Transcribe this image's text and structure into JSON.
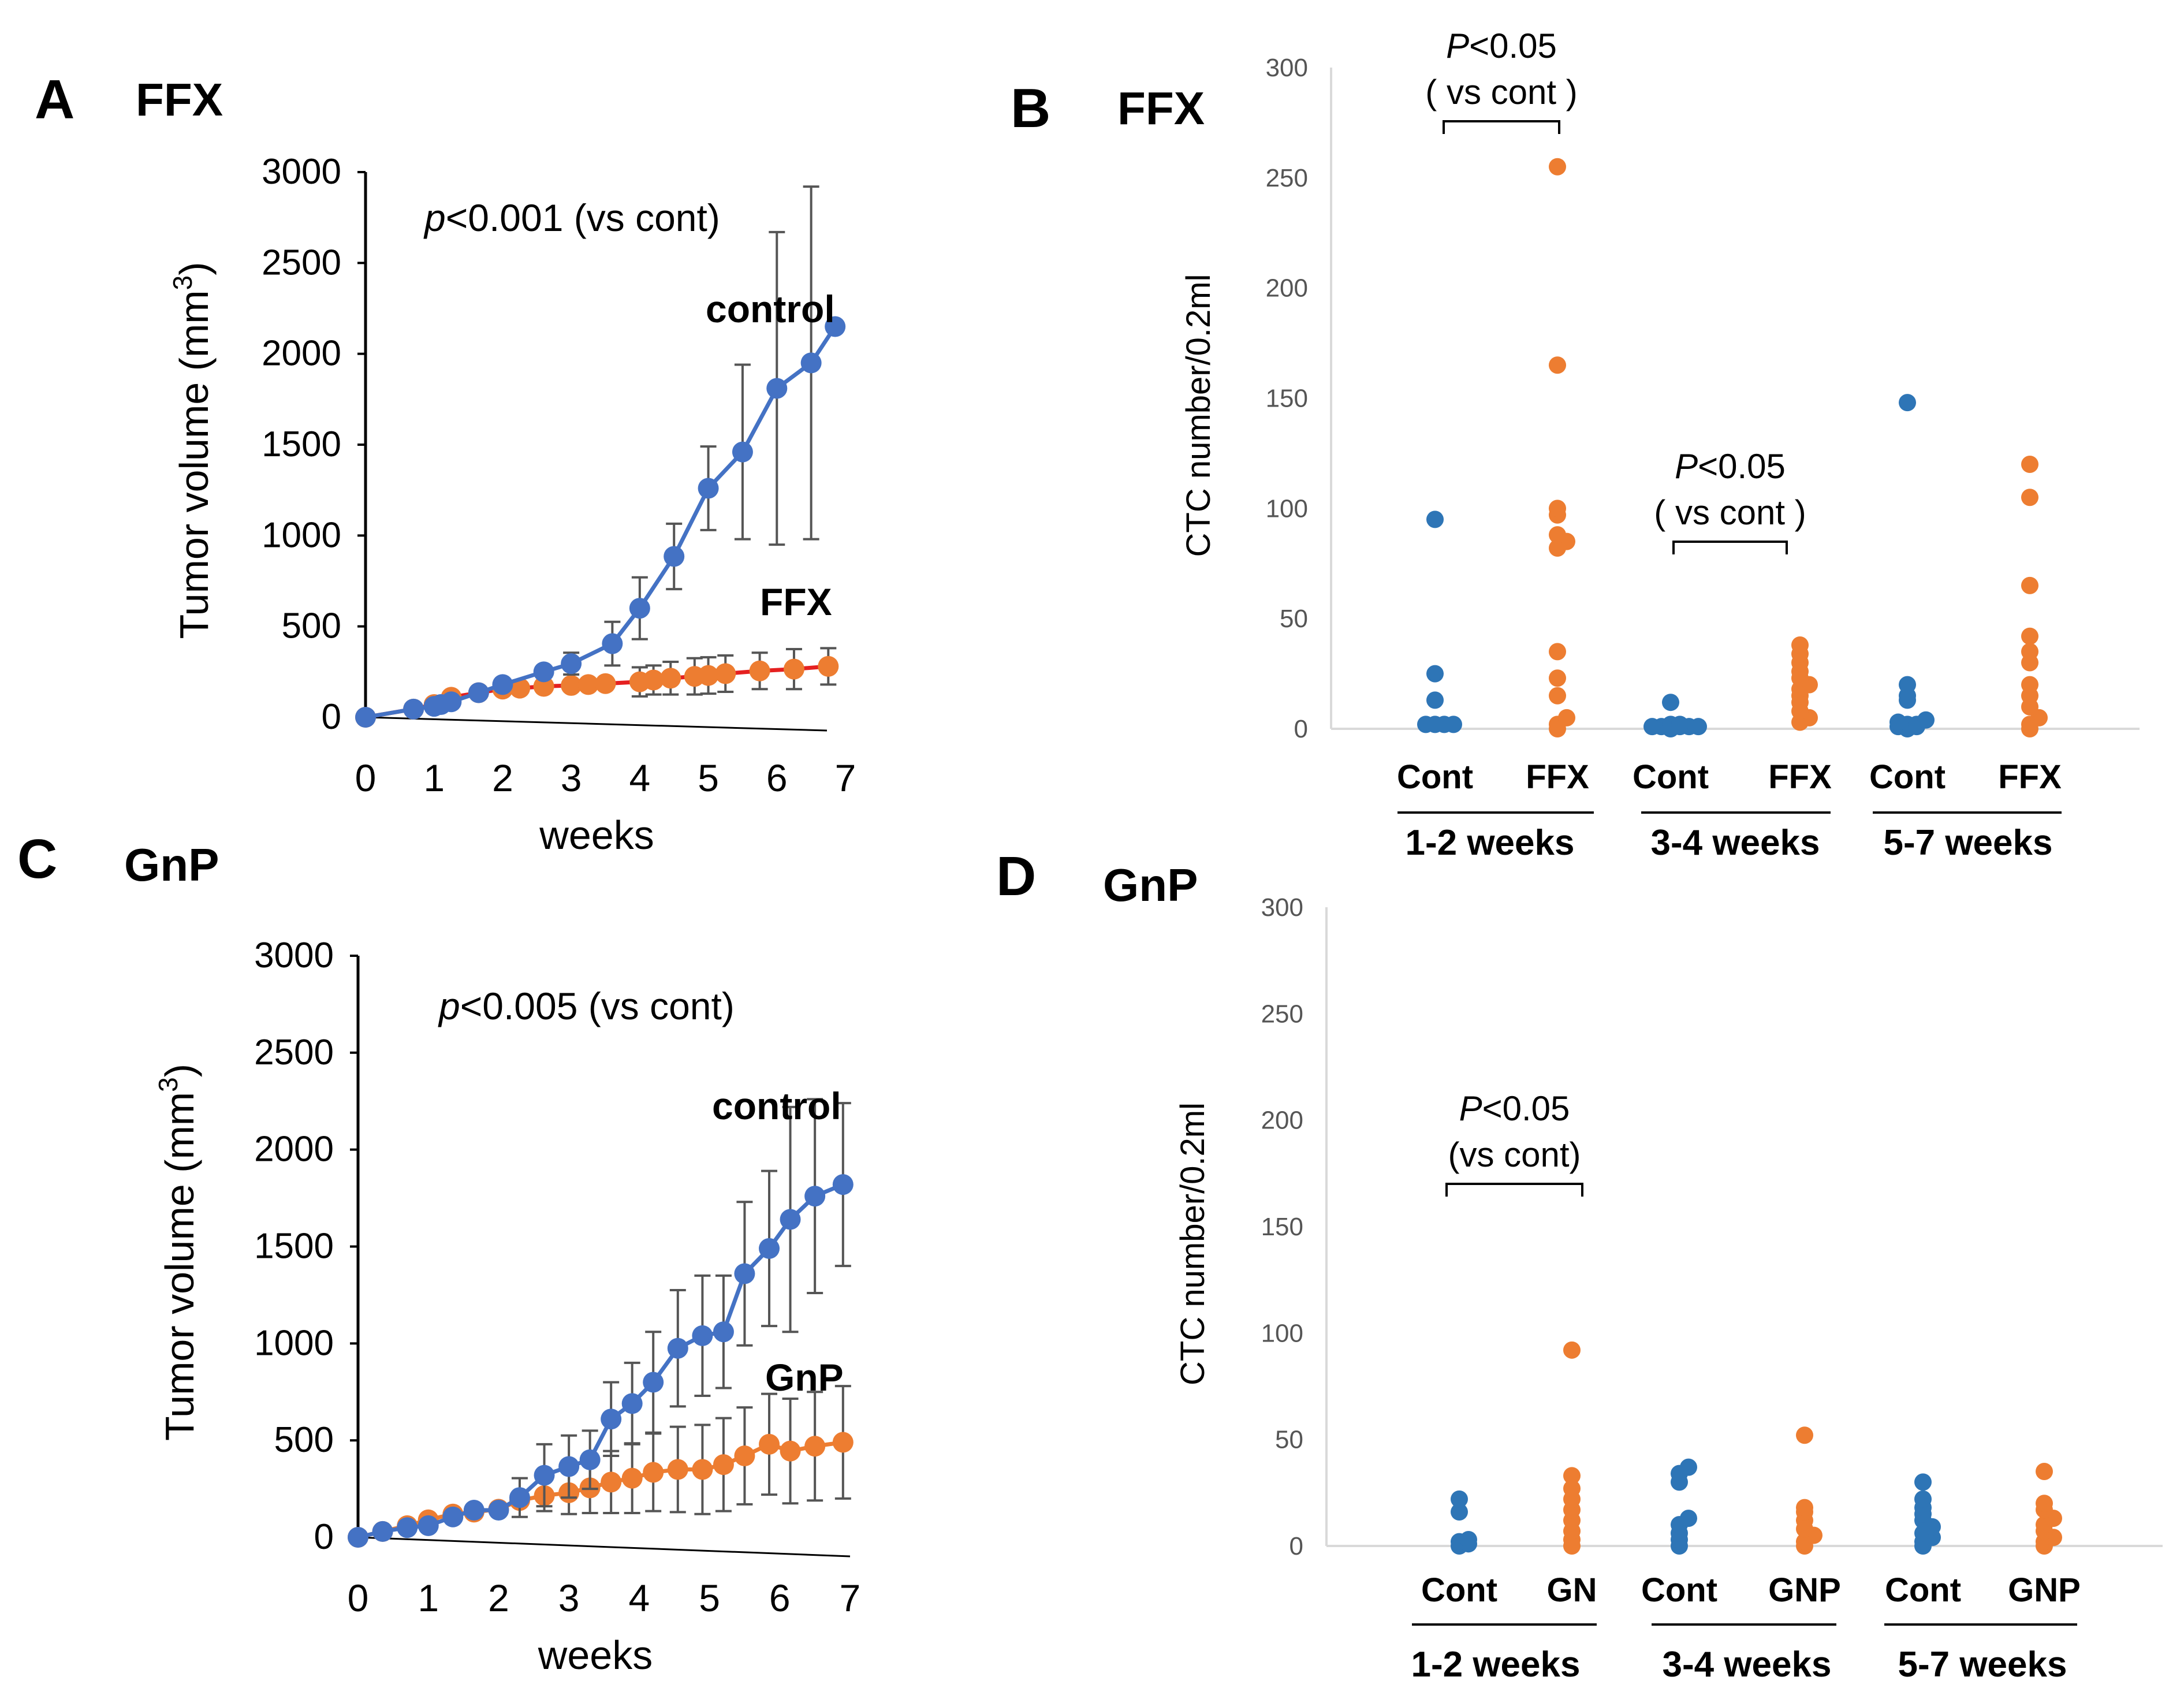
{
  "colors": {
    "control": "#4472C4",
    "treatment": "#ED7D31",
    "ffx_line": "#E52020",
    "cont_dot": "#2E75B6",
    "error_bar": "#555555",
    "axis": "#000000",
    "cat_axis": "#D9D9D9"
  },
  "chart_data": [
    {
      "id": "A",
      "type": "line",
      "panel_letter": "A",
      "panel_tag": "FFX",
      "xlabel": "weeks",
      "ylabel": "Tumor volume (mm",
      "ylabel_sup": "3",
      "ylabel_close": ")",
      "ylim": [
        0,
        3000
      ],
      "xlim": [
        0,
        7
      ],
      "yticks": [
        "0",
        "500",
        "1000",
        "1500",
        "2000",
        "2500",
        "3000"
      ],
      "xticks": [
        "0",
        "1",
        "2",
        "3",
        "4",
        "5",
        "6",
        "7"
      ],
      "annotation_p": "p",
      "annotation_rest": "<0.001 (vs cont)",
      "series": [
        {
          "name": "control",
          "color_key": "control",
          "x": [
            0,
            0.7,
            1.0,
            1.1,
            1.25,
            1.65,
            2.0,
            2.6,
            3.0,
            3.6,
            4.0,
            4.5,
            5.0,
            5.5,
            6.0,
            6.5,
            6.85
          ],
          "y": [
            0,
            45,
            60,
            70,
            85,
            135,
            180,
            250,
            295,
            405,
            600,
            885,
            1260,
            1460,
            1810,
            1950,
            2150
          ],
          "err": [
            0,
            0,
            0,
            0,
            0,
            0,
            0,
            0,
            60,
            120,
            170,
            180,
            230,
            480,
            860,
            970,
            0
          ]
        },
        {
          "name": "FFX",
          "color_key": "treatment",
          "line_color_key": "ffx_line",
          "x": [
            0,
            0.7,
            1.0,
            1.25,
            1.65,
            2.0,
            2.25,
            2.6,
            3.0,
            3.25,
            3.5,
            4.0,
            4.2,
            4.45,
            4.8,
            5.0,
            5.25,
            5.75,
            6.25,
            6.75
          ],
          "y": [
            0,
            45,
            70,
            110,
            135,
            155,
            160,
            170,
            175,
            180,
            185,
            195,
            205,
            215,
            225,
            230,
            240,
            255,
            265,
            280
          ],
          "err": [
            0,
            0,
            0,
            0,
            0,
            0,
            0,
            0,
            0,
            0,
            0,
            80,
            80,
            90,
            100,
            100,
            100,
            100,
            110,
            100
          ]
        }
      ]
    },
    {
      "id": "C",
      "type": "line",
      "panel_letter": "C",
      "panel_tag": "GnP",
      "xlabel": "weeks",
      "ylabel": "Tumor volume (mm",
      "ylabel_sup": "3",
      "ylabel_close": ")",
      "ylim": [
        0,
        3000
      ],
      "xlim": [
        0,
        7
      ],
      "yticks": [
        "0",
        "500",
        "1000",
        "1500",
        "2000",
        "2500",
        "3000"
      ],
      "xticks": [
        "0",
        "1",
        "2",
        "3",
        "4",
        "5",
        "6",
        "7"
      ],
      "annotation_p": "p",
      "annotation_rest": "<0.005 (vs cont)",
      "series": [
        {
          "name": "control",
          "color_key": "control",
          "x": [
            0,
            0.35,
            0.7,
            1.0,
            1.35,
            1.65,
            2.0,
            2.3,
            2.65,
            3.0,
            3.3,
            3.6,
            3.9,
            4.2,
            4.55,
            4.9,
            5.2,
            5.5,
            5.85,
            6.15,
            6.5,
            6.9
          ],
          "y": [
            0,
            30,
            50,
            60,
            105,
            140,
            140,
            205,
            320,
            365,
            400,
            610,
            690,
            800,
            975,
            1040,
            1060,
            1360,
            1490,
            1640,
            1760,
            1820
          ],
          "err": [
            0,
            0,
            0,
            0,
            0,
            0,
            0,
            100,
            160,
            160,
            150,
            190,
            210,
            260,
            300,
            310,
            290,
            370,
            400,
            580,
            500,
            420
          ]
        },
        {
          "name": "GnP",
          "color_key": "treatment",
          "x": [
            0,
            0.35,
            0.7,
            1.0,
            1.35,
            1.65,
            2.0,
            2.3,
            2.65,
            3.0,
            3.3,
            3.6,
            3.9,
            4.2,
            4.55,
            4.9,
            5.2,
            5.5,
            5.85,
            6.15,
            6.5,
            6.9
          ],
          "y": [
            0,
            30,
            60,
            90,
            120,
            130,
            145,
            190,
            215,
            230,
            255,
            285,
            305,
            335,
            350,
            350,
            375,
            420,
            480,
            445,
            470,
            490
          ],
          "err": [
            0,
            0,
            0,
            0,
            0,
            0,
            0,
            0,
            80,
            110,
            130,
            160,
            180,
            200,
            220,
            230,
            240,
            250,
            260,
            270,
            280,
            290
          ]
        }
      ]
    },
    {
      "id": "B",
      "type": "scatter",
      "panel_letter": "B",
      "panel_tag": "FFX",
      "ylabel": "CTC number/0.2ml",
      "ylim": [
        0,
        300
      ],
      "yticks": [
        "0",
        "50",
        "100",
        "150",
        "200",
        "250",
        "300"
      ],
      "categories": [
        "Cont",
        "FFX",
        "Cont",
        "FFX",
        "Cont",
        "FFX"
      ],
      "groups": [
        "1-2 weeks",
        "3-4 weeks",
        "5-7 weeks"
      ],
      "points": [
        [
          2,
          2,
          2,
          2,
          13,
          25,
          95
        ],
        [
          0,
          2,
          5,
          15,
          23,
          35,
          82,
          85,
          88,
          97,
          100,
          165,
          255
        ],
        [
          0,
          1,
          1,
          1,
          1,
          1,
          2,
          2,
          12
        ],
        [
          3,
          5,
          8,
          12,
          15,
          18,
          20,
          23,
          26,
          30,
          34,
          38
        ],
        [
          0,
          1,
          1,
          2,
          2,
          3,
          4,
          13,
          15,
          20,
          148
        ],
        [
          0,
          2,
          5,
          10,
          15,
          20,
          30,
          35,
          42,
          65,
          105,
          120
        ]
      ],
      "significance": [
        {
          "p": "P",
          "rest": "<0.05",
          "sub": "( vs cont )",
          "from": 0,
          "to": 1
        },
        {
          "p": "P",
          "rest": "<0.05",
          "sub": "( vs cont )",
          "from": 2,
          "to": 3
        }
      ]
    },
    {
      "id": "D",
      "type": "scatter",
      "panel_letter": "D",
      "panel_tag": "GnP",
      "ylabel": "CTC number/0.2ml",
      "ylim": [
        0,
        300
      ],
      "yticks": [
        "0",
        "50",
        "100",
        "150",
        "200",
        "250",
        "300"
      ],
      "categories": [
        "Cont",
        "GN",
        "Cont",
        "GNP",
        "Cont",
        "GNP"
      ],
      "groups": [
        "1-2 weeks",
        "3-4 weeks",
        "5-7 weeks"
      ],
      "points": [
        [
          0,
          1,
          2,
          3,
          16,
          22
        ],
        [
          0,
          3,
          7,
          12,
          17,
          22,
          27,
          33,
          92
        ],
        [
          0,
          3,
          6,
          10,
          13,
          30,
          34,
          37
        ],
        [
          0,
          2,
          5,
          8,
          12,
          16,
          18,
          52
        ],
        [
          0,
          2,
          4,
          6,
          9,
          12,
          15,
          18,
          22,
          30
        ],
        [
          0,
          2,
          4,
          7,
          10,
          13,
          17,
          20,
          35
        ]
      ],
      "significance": [
        {
          "p": "P",
          "rest": "<0.05",
          "sub": "(vs cont)",
          "from": 0,
          "to": 1
        }
      ]
    }
  ]
}
